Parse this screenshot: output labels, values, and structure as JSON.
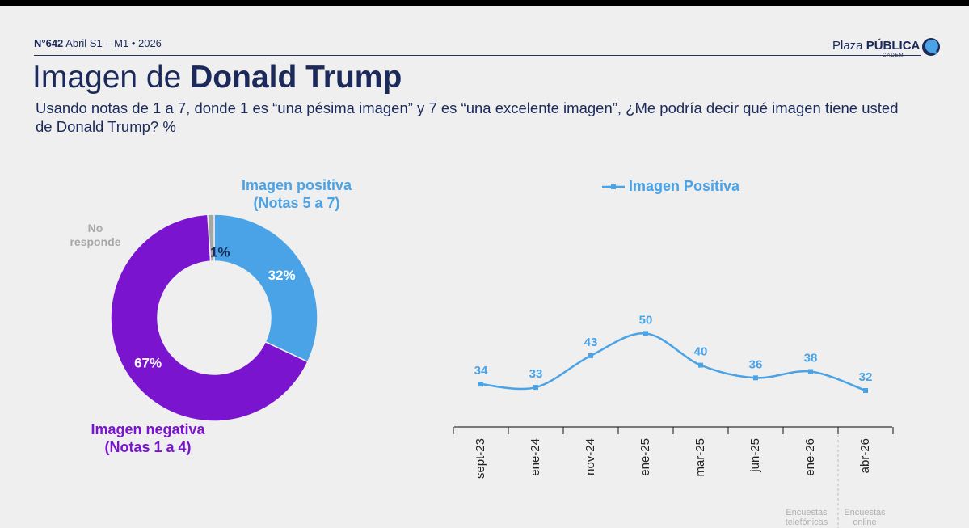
{
  "header": {
    "issue": "N°642",
    "period": "Abril S1 – M1 • 2026",
    "brand_light": "Plaza",
    "brand_bold": "PÚBLICA",
    "brand_sub": "CADEM"
  },
  "title": {
    "prefix": "Imagen de ",
    "bold": "Donald Trump"
  },
  "question": "Usando notas de 1 a 7, donde 1 es “una pésima imagen” y 7 es “una excelente imagen”, ¿Me podría decir qué imagen tiene usted de Donald Trump? %",
  "colors": {
    "positive": "#4aa3e6",
    "negative": "#7a14cf",
    "no_response": "#a6a6a6",
    "text": "#1b2a5a"
  },
  "chart_data": [
    {
      "type": "pie",
      "variant": "donut",
      "slices": [
        {
          "name": "Imagen positiva",
          "value": 32,
          "label": "32%",
          "color": "#4aa3e6"
        },
        {
          "name": "Imagen negativa",
          "value": 67,
          "label": "67%",
          "color": "#7a14cf"
        },
        {
          "name": "No responde",
          "value": 1,
          "label": "1%",
          "color": "#a6a6a6"
        }
      ],
      "labels": {
        "positive_line1": "Imagen positiva",
        "positive_line2": "(Notas 5 a 7)",
        "negative_line1": "Imagen negativa",
        "negative_line2": "(Notas 1 a 4)",
        "no_response_line1": "No",
        "no_response_line2": "responde"
      }
    },
    {
      "type": "line",
      "legend": "Imagen Positiva",
      "categories": [
        "sept-23",
        "ene-24",
        "nov-24",
        "ene-25",
        "mar-25",
        "jun-25",
        "ene-26",
        "abr-26"
      ],
      "series": [
        {
          "name": "Imagen Positiva",
          "values": [
            34,
            33,
            43,
            50,
            40,
            36,
            38,
            32
          ],
          "color": "#4aa3e6"
        }
      ],
      "ylim": [
        0,
        60
      ],
      "footnotes": {
        "left": "Encuestas telefónicas",
        "right": "Encuestas online"
      }
    }
  ]
}
